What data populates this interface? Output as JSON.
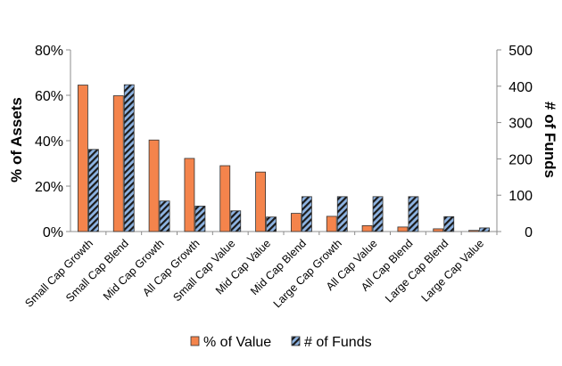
{
  "chart_data": {
    "type": "bar",
    "categories": [
      "Small Cap Growth",
      "Small Cap Blend",
      "Mid Cap Growth",
      "All Cap Growth",
      "Small Cap Value",
      "Mid Cap Value",
      "Mid Cap Blend",
      "Large Cap Growth",
      "All Cap Value",
      "All Cap Blend",
      "Large Cap Blend",
      "Large Cap Value"
    ],
    "series": [
      {
        "name": "% of Value",
        "axis": "left",
        "color": "#F4844C",
        "values": [
          64.5,
          59.8,
          40.3,
          32.2,
          29.0,
          26.2,
          8.0,
          6.7,
          2.6,
          2.0,
          1.2,
          0.5
        ]
      },
      {
        "name": "# of Funds",
        "axis": "right",
        "color": "#8EB4E3",
        "pattern": "diagonal-stripes-dark",
        "values": [
          226,
          404,
          84,
          70,
          57,
          40,
          96,
          96,
          96,
          96,
          41,
          10
        ]
      }
    ],
    "ylabel": "% of Assets",
    "ylabel_right": "# of Funds",
    "ylim": [
      0,
      80
    ],
    "ylim_right": [
      0,
      500
    ],
    "yticks": [
      "0%",
      "20%",
      "40%",
      "60%",
      "80%"
    ],
    "yticks_right": [
      "0",
      "100",
      "200",
      "300",
      "400",
      "500"
    ],
    "grid": false,
    "legend": "bottom"
  }
}
